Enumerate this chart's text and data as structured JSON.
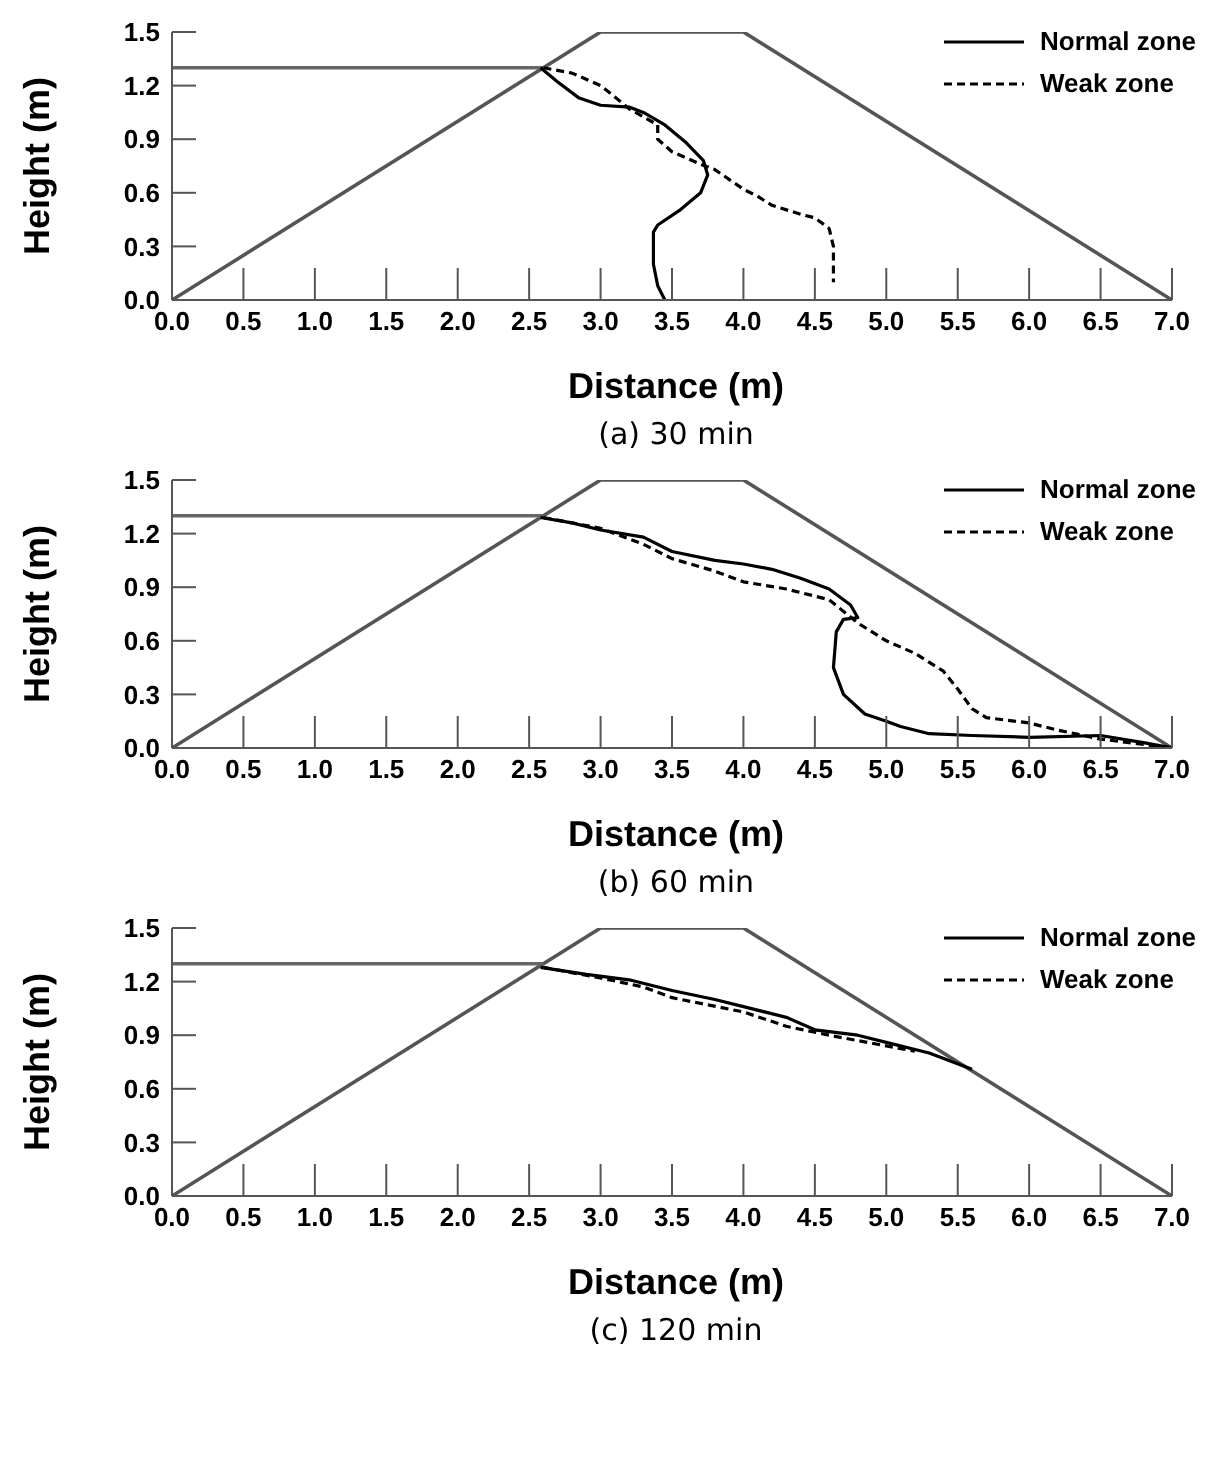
{
  "chart_data": [
    {
      "type": "line",
      "xlabel": "Distance (m)",
      "ylabel": "Height (m)",
      "annotations": [
        "(a) 30 min"
      ],
      "xlim": [
        0,
        7
      ],
      "ylim": [
        0,
        1.5
      ],
      "xticks": [
        {
          "value": 0,
          "label": "0.0"
        },
        {
          "value": 0.5,
          "label": "0.5"
        },
        {
          "value": 1,
          "label": "1.0"
        },
        {
          "value": 1.5,
          "label": "1.5"
        },
        {
          "value": 2,
          "label": "2.0"
        },
        {
          "value": 2.5,
          "label": "2.5"
        },
        {
          "value": 3,
          "label": "3.0"
        },
        {
          "value": 3.5,
          "label": "3.5"
        },
        {
          "value": 4,
          "label": "4.0"
        },
        {
          "value": 4.5,
          "label": "4.5"
        },
        {
          "value": 5,
          "label": "5.0"
        },
        {
          "value": 5.5,
          "label": "5.5"
        },
        {
          "value": 6,
          "label": "6.0"
        },
        {
          "value": 6.5,
          "label": "6.5"
        },
        {
          "value": 7,
          "label": "7.0"
        }
      ],
      "yticks": [
        {
          "value": 0,
          "label": "0.0"
        },
        {
          "value": 0.3,
          "label": "0.3"
        },
        {
          "value": 0.6,
          "label": "0.6"
        },
        {
          "value": 0.9,
          "label": "0.9"
        },
        {
          "value": 1.2,
          "label": "1.2"
        },
        {
          "value": 1.5,
          "label": "1.5"
        }
      ],
      "grid": false,
      "legend": "top right",
      "marker": "none",
      "series": [
        {
          "color": "#555555",
          "line_style": "solid",
          "x": [
            0,
            3,
            4,
            7
          ],
          "values": [
            0,
            1.5,
            1.5,
            0
          ]
        },
        {
          "color": "#666666",
          "line_style": "solid",
          "x": [
            0,
            2.6
          ],
          "values": [
            1.3,
            1.3
          ]
        },
        {
          "name": "Normal zone",
          "color": "#000000",
          "line_style": "solid",
          "x": [
            2.58,
            2.7,
            2.85,
            3.0,
            3.2,
            3.3,
            3.45,
            3.6,
            3.72,
            3.75,
            3.7,
            3.55,
            3.4,
            3.37,
            3.37,
            3.4,
            3.45
          ],
          "values": [
            1.3,
            1.22,
            1.13,
            1.09,
            1.08,
            1.05,
            0.98,
            0.88,
            0.78,
            0.7,
            0.6,
            0.5,
            0.42,
            0.38,
            0.2,
            0.08,
            0.0
          ]
        },
        {
          "name": "Weak zone",
          "color": "#000000",
          "line_style": "dashed",
          "x": [
            2.6,
            2.8,
            3.0,
            3.08,
            3.2,
            3.4,
            3.4,
            3.5,
            3.7,
            3.8,
            4.0,
            4.1,
            4.2,
            4.4,
            4.5,
            4.6,
            4.63,
            4.63
          ],
          "values": [
            1.3,
            1.27,
            1.2,
            1.15,
            1.07,
            0.98,
            0.9,
            0.83,
            0.76,
            0.73,
            0.62,
            0.58,
            0.53,
            0.48,
            0.46,
            0.4,
            0.3,
            0.1
          ]
        }
      ]
    },
    {
      "type": "line",
      "xlabel": "Distance (m)",
      "ylabel": "Height (m)",
      "annotations": [
        "(b) 60 min"
      ],
      "xlim": [
        0,
        7
      ],
      "ylim": [
        0,
        1.5
      ],
      "xticks": [
        {
          "value": 0,
          "label": "0.0"
        },
        {
          "value": 0.5,
          "label": "0.5"
        },
        {
          "value": 1,
          "label": "1.0"
        },
        {
          "value": 1.5,
          "label": "1.5"
        },
        {
          "value": 2,
          "label": "2.0"
        },
        {
          "value": 2.5,
          "label": "2.5"
        },
        {
          "value": 3,
          "label": "3.0"
        },
        {
          "value": 3.5,
          "label": "3.5"
        },
        {
          "value": 4,
          "label": "4.0"
        },
        {
          "value": 4.5,
          "label": "4.5"
        },
        {
          "value": 5,
          "label": "5.0"
        },
        {
          "value": 5.5,
          "label": "5.5"
        },
        {
          "value": 6,
          "label": "6.0"
        },
        {
          "value": 6.5,
          "label": "6.5"
        },
        {
          "value": 7,
          "label": "7.0"
        }
      ],
      "yticks": [
        {
          "value": 0,
          "label": "0.0"
        },
        {
          "value": 0.3,
          "label": "0.3"
        },
        {
          "value": 0.6,
          "label": "0.6"
        },
        {
          "value": 0.9,
          "label": "0.9"
        },
        {
          "value": 1.2,
          "label": "1.2"
        },
        {
          "value": 1.5,
          "label": "1.5"
        }
      ],
      "grid": false,
      "legend": "top right",
      "marker": "none",
      "series": [
        {
          "color": "#555555",
          "line_style": "solid",
          "x": [
            0,
            3,
            4,
            7
          ],
          "values": [
            0,
            1.5,
            1.5,
            0
          ]
        },
        {
          "color": "#666666",
          "line_style": "solid",
          "x": [
            0,
            2.6
          ],
          "values": [
            1.3,
            1.3
          ]
        },
        {
          "name": "Normal zone",
          "color": "#000000",
          "line_style": "solid",
          "x": [
            2.58,
            2.8,
            3.0,
            3.3,
            3.5,
            3.8,
            4.0,
            4.2,
            4.4,
            4.6,
            4.75,
            4.8,
            4.7,
            4.65,
            4.63,
            4.7,
            4.85,
            5.0,
            5.1,
            5.3,
            5.6,
            6.0,
            6.5,
            6.8,
            7.0
          ],
          "values": [
            1.29,
            1.26,
            1.22,
            1.18,
            1.1,
            1.05,
            1.03,
            1.0,
            0.95,
            0.89,
            0.8,
            0.73,
            0.72,
            0.65,
            0.45,
            0.3,
            0.19,
            0.15,
            0.12,
            0.08,
            0.07,
            0.06,
            0.07,
            0.03,
            0.0
          ]
        },
        {
          "name": "Weak zone",
          "color": "#000000",
          "line_style": "dashed",
          "x": [
            2.6,
            3.0,
            3.3,
            3.5,
            3.8,
            4.0,
            4.3,
            4.6,
            4.8,
            5.0,
            5.2,
            5.4,
            5.5,
            5.6,
            5.7,
            6.0,
            6.2,
            6.5,
            6.8,
            7.0
          ],
          "values": [
            1.29,
            1.23,
            1.14,
            1.06,
            0.99,
            0.93,
            0.89,
            0.83,
            0.7,
            0.6,
            0.53,
            0.43,
            0.33,
            0.22,
            0.17,
            0.14,
            0.1,
            0.05,
            0.02,
            0.0
          ]
        }
      ]
    },
    {
      "type": "line",
      "xlabel": "Distance (m)",
      "ylabel": "Height (m)",
      "annotations": [
        "(c) 120 min"
      ],
      "xlim": [
        0,
        7
      ],
      "ylim": [
        0,
        1.5
      ],
      "xticks": [
        {
          "value": 0,
          "label": "0.0"
        },
        {
          "value": 0.5,
          "label": "0.5"
        },
        {
          "value": 1,
          "label": "1.0"
        },
        {
          "value": 1.5,
          "label": "1.5"
        },
        {
          "value": 2,
          "label": "2.0"
        },
        {
          "value": 2.5,
          "label": "2.5"
        },
        {
          "value": 3,
          "label": "3.0"
        },
        {
          "value": 3.5,
          "label": "3.5"
        },
        {
          "value": 4,
          "label": "4.0"
        },
        {
          "value": 4.5,
          "label": "4.5"
        },
        {
          "value": 5,
          "label": "5.0"
        },
        {
          "value": 5.5,
          "label": "5.5"
        },
        {
          "value": 6,
          "label": "6.0"
        },
        {
          "value": 6.5,
          "label": "6.5"
        },
        {
          "value": 7,
          "label": "7.0"
        }
      ],
      "yticks": [
        {
          "value": 0,
          "label": "0.0"
        },
        {
          "value": 0.3,
          "label": "0.3"
        },
        {
          "value": 0.6,
          "label": "0.6"
        },
        {
          "value": 0.9,
          "label": "0.9"
        },
        {
          "value": 1.2,
          "label": "1.2"
        },
        {
          "value": 1.5,
          "label": "1.5"
        }
      ],
      "grid": false,
      "legend": "top right",
      "marker": "none",
      "series": [
        {
          "color": "#555555",
          "line_style": "solid",
          "x": [
            0,
            3,
            4,
            7
          ],
          "values": [
            0,
            1.5,
            1.5,
            0
          ]
        },
        {
          "color": "#666666",
          "line_style": "solid",
          "x": [
            0,
            2.6
          ],
          "values": [
            1.3,
            1.3
          ]
        },
        {
          "name": "Normal zone",
          "color": "#000000",
          "line_style": "solid",
          "x": [
            2.58,
            2.9,
            3.2,
            3.5,
            3.8,
            4.0,
            4.3,
            4.5,
            4.8,
            5.0,
            5.3,
            5.6
          ],
          "values": [
            1.28,
            1.24,
            1.21,
            1.15,
            1.1,
            1.06,
            1.0,
            0.93,
            0.9,
            0.86,
            0.8,
            0.71
          ]
        },
        {
          "name": "Weak zone",
          "color": "#000000",
          "line_style": "dashed",
          "x": [
            2.6,
            3.0,
            3.3,
            3.5,
            4.0,
            4.3,
            4.6,
            5.0,
            5.2
          ],
          "values": [
            1.28,
            1.22,
            1.17,
            1.11,
            1.03,
            0.95,
            0.9,
            0.84,
            0.81
          ]
        }
      ]
    }
  ]
}
